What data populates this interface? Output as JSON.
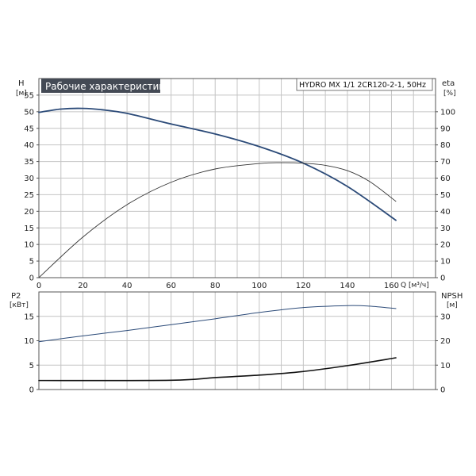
{
  "chart_data": [
    {
      "type": "line",
      "panel": "top",
      "title": "Рабочие характеристики",
      "model": "HYDRO MX 1/1 2CR120-2-1, 50Hz",
      "xlabel": "Q [м³/ч]",
      "x_ticks": [
        "0",
        "20",
        "40",
        "60",
        "80",
        "100",
        "120",
        "140",
        "160"
      ],
      "xlim": [
        0,
        180
      ],
      "left_axis": {
        "label": "H",
        "unit": "[м]",
        "ylim": [
          0,
          60
        ],
        "ticks": [
          "0",
          "5",
          "10",
          "15",
          "20",
          "25",
          "30",
          "35",
          "40",
          "45",
          "50",
          "55"
        ]
      },
      "right_axis": {
        "label": "eta",
        "unit": "[%]",
        "ylim": [
          0,
          120
        ],
        "ticks": [
          "0",
          "10",
          "20",
          "30",
          "40",
          "50",
          "60",
          "70",
          "80",
          "90",
          "100"
        ]
      },
      "grid": true,
      "series": [
        {
          "axis": "left",
          "color": "#2b4a78",
          "x": [
            0,
            10,
            20,
            30,
            40,
            60,
            80,
            100,
            120,
            140,
            162
          ],
          "y": [
            49.8,
            50.8,
            51.0,
            50.5,
            49.5,
            46.3,
            43.3,
            39.5,
            34.5,
            27.5,
            17.3
          ]
        },
        {
          "axis": "right",
          "color": "#333333",
          "x": [
            0,
            20,
            40,
            60,
            80,
            100,
            110,
            120,
            130,
            140,
            150,
            162
          ],
          "y": [
            0,
            24.5,
            44,
            57.5,
            65.5,
            68.8,
            69.3,
            69,
            67.7,
            64.5,
            58,
            46
          ]
        }
      ]
    },
    {
      "type": "line",
      "panel": "bottom",
      "xlim": [
        0,
        180
      ],
      "left_axis": {
        "label": "P2",
        "unit": "[кВт]",
        "ylim": [
          0,
          20
        ],
        "ticks": [
          "0",
          "5",
          "10",
          "15"
        ]
      },
      "right_axis": {
        "label": "NPSH",
        "unit": "[м]",
        "ylim": [
          0,
          40
        ],
        "ticks": [
          "0",
          "10",
          "20",
          "30"
        ]
      },
      "grid": true,
      "series": [
        {
          "axis": "left",
          "color": "#2b4a78",
          "x": [
            0,
            20,
            40,
            60,
            80,
            100,
            120,
            140,
            150,
            162
          ],
          "y": [
            9.8,
            11,
            12.1,
            13.3,
            14.5,
            15.8,
            16.8,
            17.2,
            17.1,
            16.6
          ]
        },
        {
          "axis": "right",
          "color": "#111111",
          "x": [
            0,
            60,
            80,
            100,
            120,
            140,
            162
          ],
          "y": [
            3.7,
            3.8,
            4.9,
            5.9,
            7.4,
            9.8,
            13
          ]
        }
      ]
    }
  ]
}
